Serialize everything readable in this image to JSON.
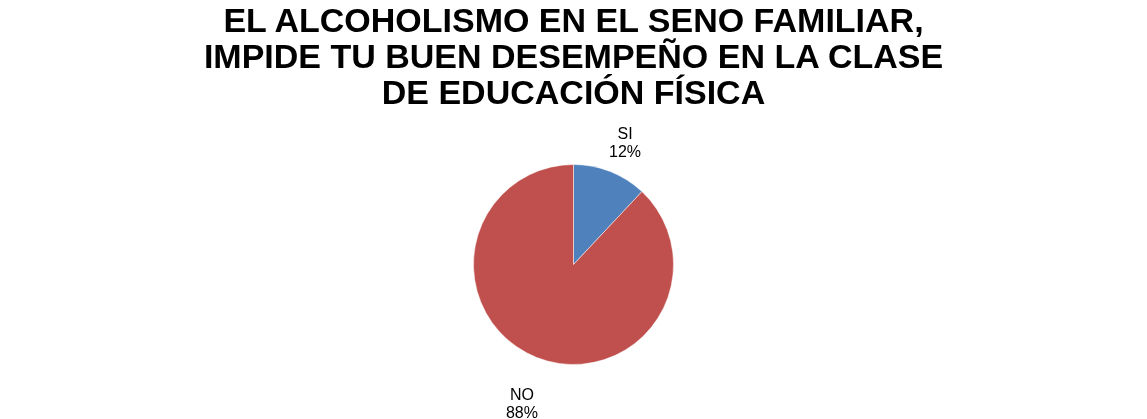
{
  "chart_data": {
    "type": "pie",
    "title": "EL ALCOHOLISMO EN EL SENO FAMILIAR, IMPIDE TU BUEN DESEMPEÑO EN LA CLASE DE EDUCACIÓN FÍSICA",
    "categories": [
      "SI",
      "NO"
    ],
    "values": [
      12,
      88
    ],
    "colors": [
      "#4f81bd",
      "#c0504d"
    ],
    "value_labels": [
      "12%",
      "88%"
    ],
    "legend": false
  }
}
